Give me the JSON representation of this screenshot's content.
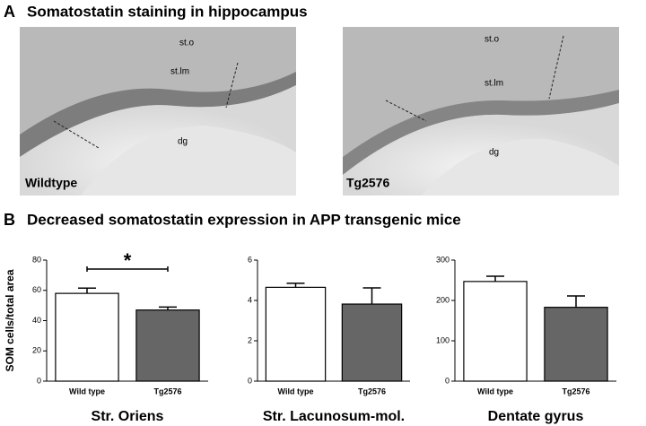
{
  "panel_a": {
    "label": "A",
    "title": "Somatostatin staining in hippocampus",
    "images": [
      {
        "caption": "Wildtype",
        "regions": [
          "st.o",
          "st.lm",
          "dg"
        ]
      },
      {
        "caption": "Tg2576",
        "regions": [
          "st.o",
          "st.lm",
          "dg"
        ]
      }
    ]
  },
  "panel_b": {
    "label": "B",
    "title": "Decreased somatostatin expression in APP transgenic mice"
  },
  "chart_data": [
    {
      "type": "bar",
      "xlabel": "Str. Oriens",
      "ylabel": "SOM cells/total area",
      "categories": [
        "Wild type",
        "Tg2576"
      ],
      "values": [
        58,
        47
      ],
      "errors": [
        3.5,
        2
      ],
      "colors": [
        "#ffffff",
        "#666666"
      ],
      "ylim": [
        0,
        80
      ],
      "yticks": [
        0,
        20,
        40,
        60,
        80
      ],
      "annotation": "*"
    },
    {
      "type": "bar",
      "xlabel": "Str. Lacunosum-mol.",
      "categories": [
        "Wild type",
        "Tg2576"
      ],
      "values": [
        4.65,
        3.82
      ],
      "errors": [
        0.2,
        0.8
      ],
      "colors": [
        "#ffffff",
        "#666666"
      ],
      "ylim": [
        0,
        6
      ],
      "yticks": [
        0,
        2,
        4,
        6
      ]
    },
    {
      "type": "bar",
      "xlabel": "Dentate gyrus",
      "categories": [
        "Wild type",
        "Tg2576"
      ],
      "values": [
        247,
        183
      ],
      "errors": [
        13,
        28
      ],
      "colors": [
        "#ffffff",
        "#666666"
      ],
      "ylim": [
        0,
        300
      ],
      "yticks": [
        0,
        100,
        200,
        300
      ]
    }
  ]
}
